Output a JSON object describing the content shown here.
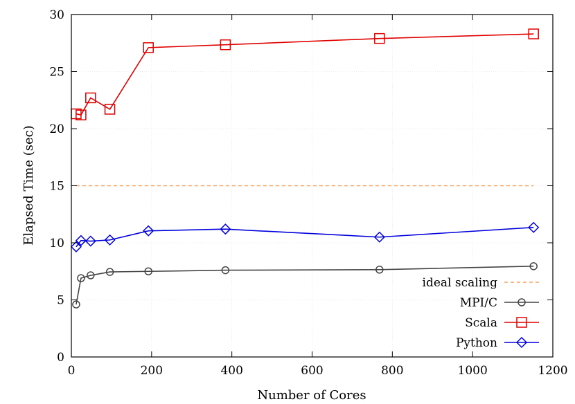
{
  "chart_data": {
    "type": "line",
    "xlabel": "Number of Cores",
    "ylabel": "Elapsed Time (sec)",
    "xlim": [
      0,
      1200
    ],
    "ylim": [
      0,
      30
    ],
    "xticks": [
      0,
      200,
      400,
      600,
      800,
      1000,
      1200
    ],
    "yticks": [
      0,
      5,
      10,
      15,
      20,
      25,
      30
    ],
    "grid": true,
    "legend_position": "bottom-right",
    "reference_lines": [
      {
        "name": "ideal scaling",
        "y": 15,
        "color": "#f4a460",
        "style": "dashed"
      }
    ],
    "series": [
      {
        "name": "MPI/C",
        "color": "#444444",
        "marker": "circle",
        "x": [
          12,
          24,
          48,
          96,
          192,
          384,
          768,
          1152
        ],
        "y": [
          4.6,
          6.9,
          7.15,
          7.45,
          7.5,
          7.6,
          7.65,
          7.95
        ]
      },
      {
        "name": "Scala",
        "color": "#e00000",
        "marker": "square",
        "x": [
          12,
          24,
          48,
          96,
          192,
          384,
          768,
          1152
        ],
        "y": [
          21.3,
          21.2,
          22.7,
          21.7,
          27.1,
          27.35,
          27.9,
          28.3
        ]
      },
      {
        "name": "Python",
        "color": "#0000dd",
        "marker": "diamond",
        "x": [
          12,
          24,
          48,
          96,
          192,
          384,
          768,
          1152
        ],
        "y": [
          9.65,
          10.2,
          10.15,
          10.25,
          11.05,
          11.2,
          10.5,
          11.35
        ]
      }
    ]
  }
}
